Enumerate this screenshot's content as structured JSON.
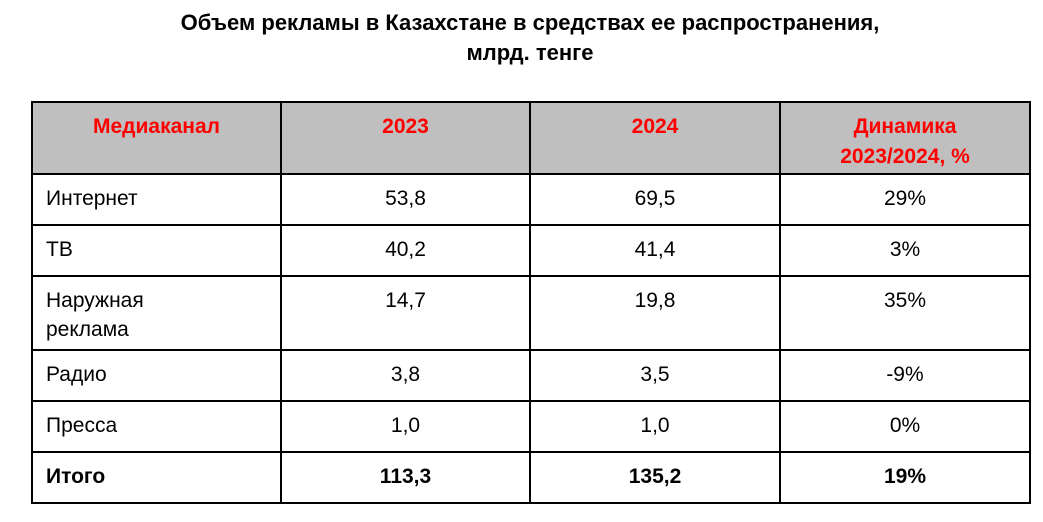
{
  "chart_data": {
    "type": "table",
    "title_line1": "Объем рекламы в Казахстане в средствах ее распространения,",
    "title_line2": "млрд. тенге",
    "columns": [
      "Медиаканал",
      "2023",
      "2024",
      "Динамика 2023/2024, %"
    ],
    "rows": [
      {
        "channel": "Интернет",
        "y2023": "53,8",
        "y2024": "69,5",
        "change": "29%"
      },
      {
        "channel": "ТВ",
        "y2023": "40,2",
        "y2024": "41,4",
        "change": "3%"
      },
      {
        "channel": "Наружная реклама",
        "y2023": "14,7",
        "y2024": "19,8",
        "change": "35%"
      },
      {
        "channel": "Радио",
        "y2023": "3,8",
        "y2024": "3,5",
        "change": "-9%"
      },
      {
        "channel": "Пресса",
        "y2023": "1,0",
        "y2024": "1,0",
        "change": "0%"
      }
    ],
    "total": {
      "channel": "Итого",
      "y2023": "113,3",
      "y2024": "135,2",
      "change": "19%"
    }
  },
  "colors": {
    "header_bg": "#bfbfbf",
    "header_text": "#ff0000",
    "border": "#000000"
  }
}
